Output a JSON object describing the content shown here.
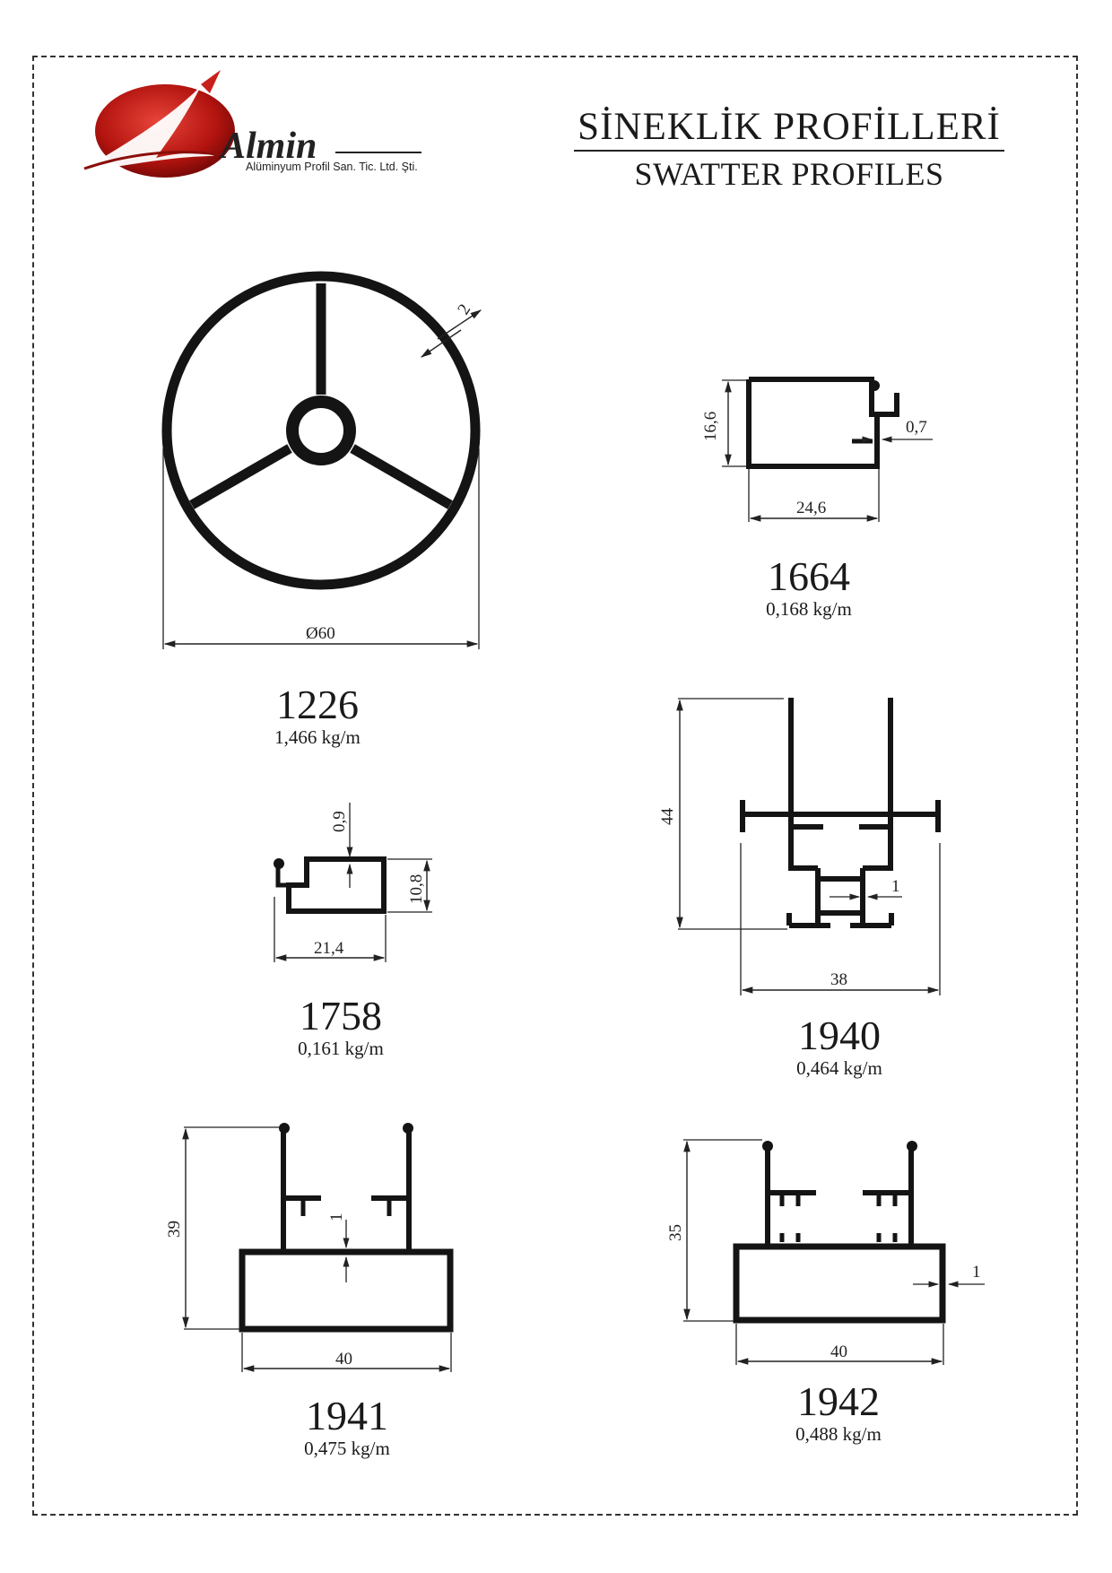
{
  "logo": {
    "brand": "Almin",
    "subtitle": "Alüminyum Profil San. Tic. Ltd. Şti."
  },
  "title": {
    "tr": "SİNEKLİK PROFİLLERİ",
    "en": "SWATTER PROFILES"
  },
  "profiles": [
    {
      "code": "1226",
      "weight": "1,466 kg/m",
      "dims": {
        "diameter": "Ø60",
        "wall": "2"
      }
    },
    {
      "code": "1664",
      "weight": "0,168 kg/m",
      "dims": {
        "height": "16,6",
        "width": "24,6",
        "wall": "0,7"
      }
    },
    {
      "code": "1758",
      "weight": "0,161 kg/m",
      "dims": {
        "wall": "0,9",
        "height": "10,8",
        "width": "21,4"
      }
    },
    {
      "code": "1940",
      "weight": "0,464 kg/m",
      "dims": {
        "height": "44",
        "width": "38",
        "wall": "1"
      }
    },
    {
      "code": "1941",
      "weight": "0,475 kg/m",
      "dims": {
        "height": "39",
        "width": "40",
        "wall": "1"
      }
    },
    {
      "code": "1942",
      "weight": "0,488 kg/m",
      "dims": {
        "height": "35",
        "width": "40",
        "wall": "1"
      }
    }
  ]
}
